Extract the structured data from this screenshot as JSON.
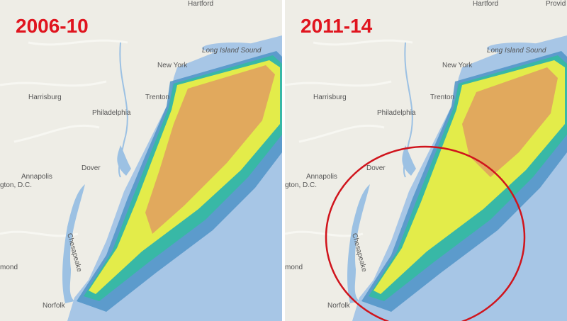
{
  "panels": [
    {
      "title": "2006-10",
      "labels": [
        "Hartford",
        "Long Island Sound",
        "New York",
        "Harrisburg",
        "Trenton",
        "Philadelphia",
        "Dover",
        "Annapolis",
        "gton, D.C.",
        "Chesapeake",
        "mond",
        "Norfolk"
      ]
    },
    {
      "title": "2011-14",
      "labels": [
        "Hartford",
        "Long Island Sound",
        "New York",
        "Harrisburg",
        "Trenton",
        "Philadelphia",
        "Dover",
        "Annapolis",
        "gton, D.C.",
        "Chesapeake",
        "mond",
        "Norfolk",
        "Provid"
      ]
    }
  ]
}
